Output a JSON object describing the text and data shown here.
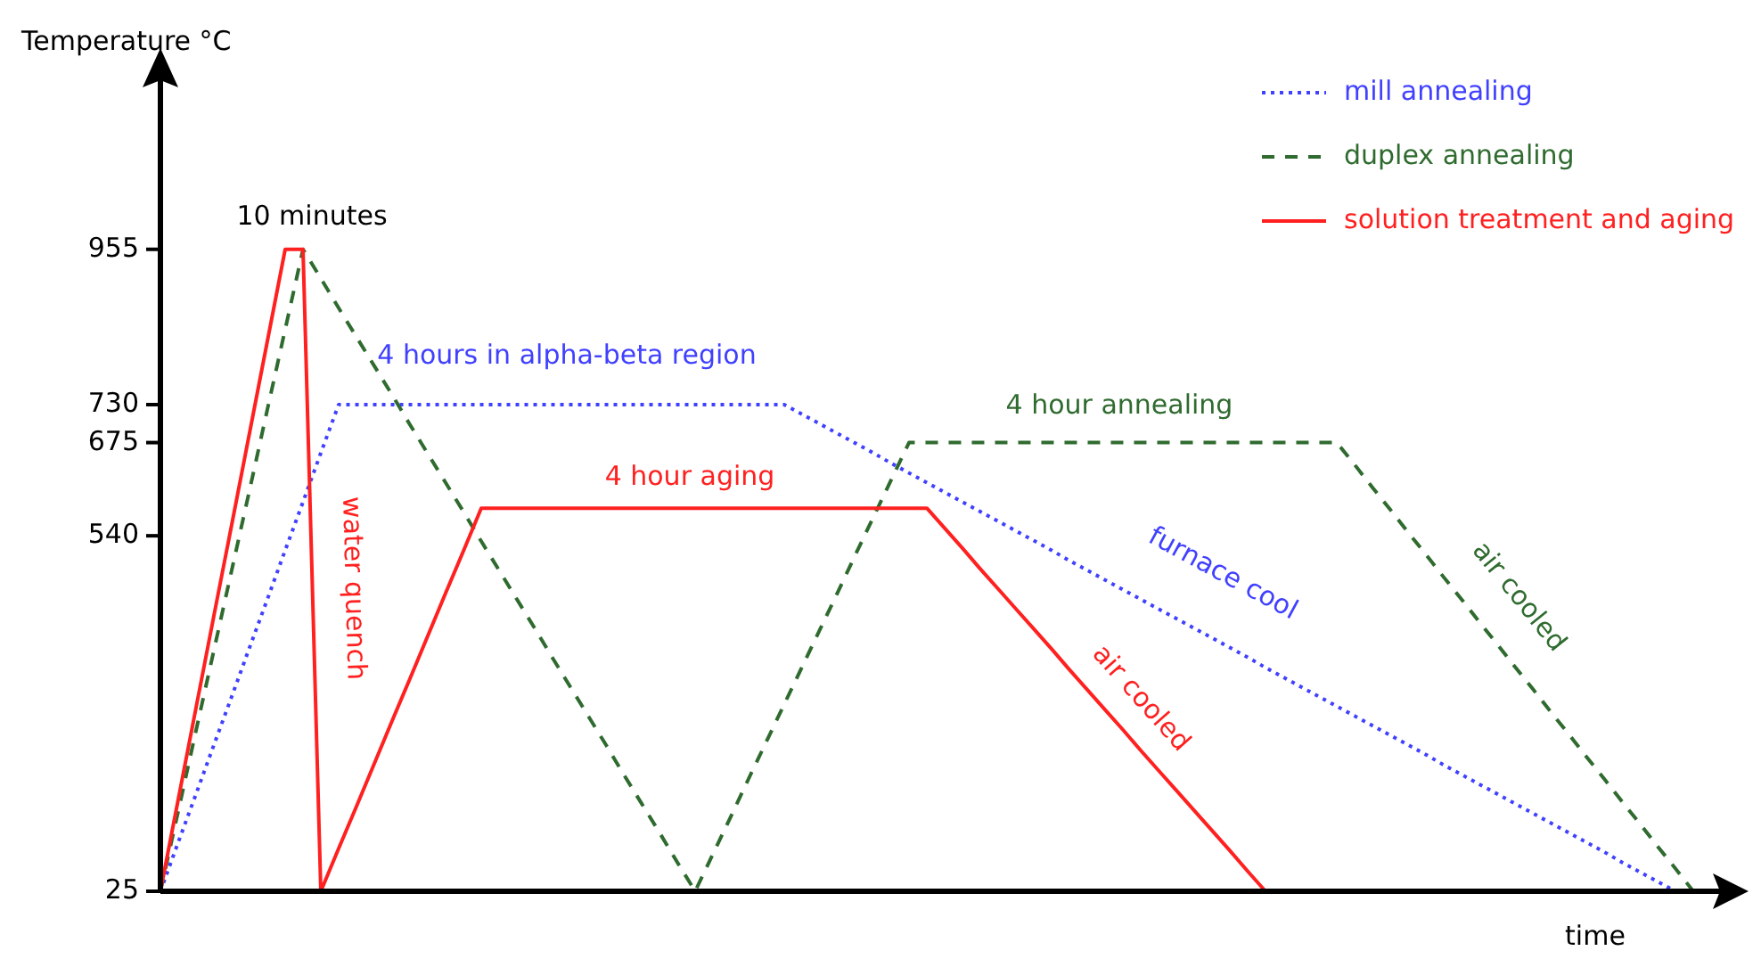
{
  "chart_data": {
    "type": "line",
    "xlabel": "time",
    "ylabel": "Temperature °C",
    "categories": [
      null,
      null,
      null,
      null,
      null,
      null,
      null,
      null,
      null,
      null,
      null,
      null,
      null,
      null,
      null,
      null,
      null,
      null,
      null,
      null,
      null,
      null,
      null,
      null,
      null,
      null,
      null,
      null,
      null,
      null,
      null,
      null,
      null,
      null,
      null,
      null,
      null,
      null,
      null,
      null,
      null,
      null,
      null,
      null,
      null,
      null,
      null,
      null,
      null,
      null,
      null,
      null,
      null,
      null,
      null,
      null,
      null,
      null,
      null,
      null,
      null,
      null,
      null,
      null,
      null,
      null,
      null,
      null,
      null,
      null,
      null,
      null,
      null,
      null,
      null,
      null,
      null,
      null,
      null,
      null,
      null,
      null,
      null,
      null,
      null,
      null,
      null,
      null,
      null
    ],
    "ylim": [
      25,
      1200
    ],
    "yticks": [
      25,
      540,
      675,
      730,
      955
    ],
    "tick_labels": "y",
    "legend": "top right",
    "series": [
      {
        "name": "mill annealing",
        "color": "#4040ff",
        "line_style": "dotted",
        "values": [
          25,
          96,
          166,
          237,
          307,
          378,
          448,
          519,
          589,
          660,
          730,
          730,
          730,
          730,
          730,
          730,
          730,
          730,
          730,
          730,
          730,
          730,
          730,
          730,
          730,
          730,
          730,
          730,
          730,
          730,
          730,
          730,
          730,
          730,
          730,
          730,
          716,
          702,
          688,
          674,
          660,
          645,
          631,
          617,
          603,
          589,
          575,
          561,
          547,
          533,
          519,
          504,
          490,
          476,
          462,
          448,
          434,
          420,
          406,
          392,
          378,
          364,
          349,
          335,
          321,
          307,
          293,
          279,
          265,
          251,
          237,
          223,
          208,
          194,
          180,
          166,
          152,
          138,
          124,
          110,
          96,
          82,
          67,
          53,
          39,
          25,
          null,
          null,
          null
        ]
      },
      {
        "name": "duplex annealing",
        "color": "#2f6b2f",
        "line_style": "dashed",
        "values": [
          25,
          141,
          258,
          374,
          490,
          606,
          723,
          839,
          955,
          913,
          870,
          828,
          786,
          744,
          701,
          659,
          617,
          575,
          532,
          490,
          448,
          406,
          363,
          321,
          279,
          237,
          194,
          152,
          110,
          67,
          25,
          79,
          133,
          188,
          242,
          296,
          350,
          404,
          458,
          513,
          567,
          621,
          675,
          675,
          675,
          675,
          675,
          675,
          675,
          675,
          675,
          675,
          675,
          675,
          675,
          675,
          675,
          675,
          675,
          675,
          675,
          675,
          675,
          675,
          675,
          675,
          675,
          643,
          610,
          578,
          545,
          513,
          480,
          448,
          415,
          383,
          350,
          318,
          285,
          253,
          220,
          188,
          155,
          123,
          90,
          58,
          25,
          null,
          null
        ]
      },
      {
        "name": "solution treatment and aging",
        "color": "#ff2020",
        "line_style": "solid",
        "values": [
          25,
          158,
          291,
          424,
          556,
          689,
          822,
          955,
          955,
          25,
          87,
          148,
          210,
          272,
          333,
          395,
          457,
          518,
          580,
          580,
          580,
          580,
          580,
          580,
          580,
          580,
          580,
          580,
          580,
          580,
          580,
          580,
          580,
          580,
          580,
          580,
          580,
          580,
          580,
          580,
          580,
          580,
          580,
          580,
          551,
          522,
          492,
          463,
          434,
          405,
          376,
          346,
          317,
          288,
          259,
          229,
          200,
          171,
          142,
          113,
          84,
          54,
          25,
          null,
          null,
          null,
          null,
          null,
          null,
          null,
          null,
          null,
          null,
          null,
          null,
          null,
          null,
          null,
          null,
          null,
          null,
          null,
          null,
          null,
          null,
          null,
          null,
          null,
          null
        ]
      }
    ],
    "annotations": [
      "10 minutes",
      "4 hours in alpha-beta region",
      "water quench",
      "4 hour aging",
      "4 hour annealing",
      "furnace cool",
      "air cooled",
      "air cooled"
    ]
  }
}
